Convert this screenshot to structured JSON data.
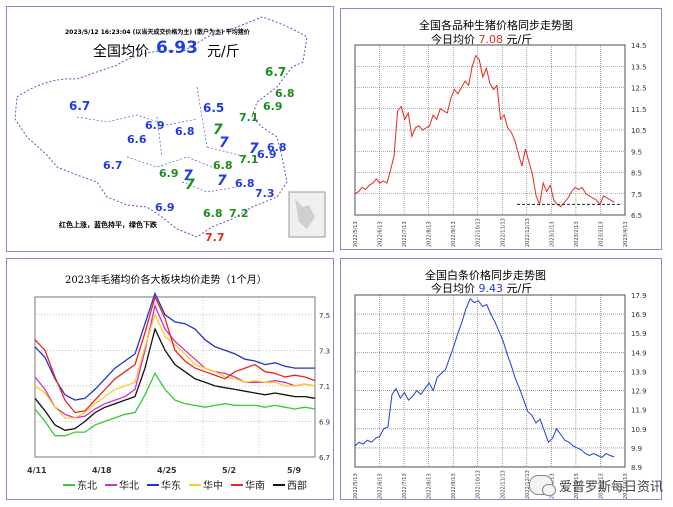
{
  "colors": {
    "border": "#8a8ad0",
    "grid": "#555555",
    "red": "#e8281e",
    "blue": "#1f3de0",
    "green": "#1e8c1e"
  },
  "map": {
    "date_line": "2023/5/12   16:23:04   (以当天成交价格为主)   (散户为主)   平均猪价",
    "avg_label": "全国均价",
    "avg_value": "6.93",
    "avg_unit": "元/斤",
    "legend": "红色上涨，蓝色持平，绿色下跌",
    "price_labels": [
      {
        "text": "6.7",
        "color": "green"
      },
      {
        "text": "6.8",
        "color": "green"
      },
      {
        "text": "6.9",
        "color": "green"
      },
      {
        "text": "6.5",
        "color": "blue"
      },
      {
        "text": "6.7",
        "color": "blue"
      },
      {
        "text": "6.9",
        "color": "blue"
      },
      {
        "text": "6.8",
        "color": "blue"
      },
      {
        "text": "6.6",
        "color": "blue"
      },
      {
        "text": "7.1",
        "color": "green"
      },
      {
        "text": "7",
        "color": "green"
      },
      {
        "text": "7",
        "color": "blue"
      },
      {
        "text": "7",
        "color": "blue"
      },
      {
        "text": "6.7",
        "color": "blue"
      },
      {
        "text": "6.8",
        "color": "green"
      },
      {
        "text": "6.9",
        "color": "blue"
      },
      {
        "text": "7.1",
        "color": "green"
      },
      {
        "text": "6.9",
        "color": "green"
      },
      {
        "text": "7",
        "color": "blue"
      },
      {
        "text": "7",
        "color": "blue"
      },
      {
        "text": "6.8",
        "color": "blue"
      },
      {
        "text": "6.8",
        "color": "blue"
      },
      {
        "text": "7",
        "color": "green"
      },
      {
        "text": "7.3",
        "color": "blue"
      },
      {
        "text": "6.9",
        "color": "blue"
      },
      {
        "text": "6.8",
        "color": "green"
      },
      {
        "text": "7.2",
        "color": "green"
      },
      {
        "text": "7.7",
        "color": "red"
      }
    ]
  },
  "chart_data": [
    {
      "type": "line",
      "title": "全国各品种生猪价格同步走势图",
      "subtitle_prefix": "今日均价",
      "subtitle_value": "7.08",
      "subtitle_unit": "元/斤",
      "yticks": [
        "14.5",
        "13.5",
        "12.5",
        "11.5",
        "10.5",
        "9.5",
        "8.5",
        "7.5",
        "6.5"
      ],
      "ylim": [
        6.5,
        14.5
      ],
      "xticks": [
        "2022/5/13",
        "2022/6/13",
        "2022/7/13",
        "2022/8/13",
        "2022/9/13",
        "2022/10/13",
        "2022/11/13",
        "2022/12/13",
        "2023/1/13",
        "2023/2/13",
        "2023/3/13",
        "2023/4/13"
      ],
      "series": [
        {
          "color": "red",
          "dashed_level": 7.0,
          "values": [
            7.5,
            7.6,
            7.8,
            7.7,
            7.9,
            8.0,
            8.2,
            8.0,
            8.1,
            8.0,
            8.6,
            9.3,
            11.4,
            11.6,
            11.0,
            11.3,
            10.2,
            10.6,
            10.7,
            10.5,
            10.6,
            10.7,
            11.2,
            11.0,
            11.5,
            11.4,
            11.3,
            12.0,
            12.4,
            12.2,
            12.5,
            12.8,
            12.6,
            13.5,
            14.0,
            13.8,
            13.0,
            13.4,
            12.7,
            12.4,
            12.6,
            11.0,
            11.2,
            10.6,
            10.4,
            10.0,
            9.4,
            8.8,
            9.6,
            9.0,
            8.4,
            7.4,
            7.0,
            8.0,
            7.6,
            7.9,
            7.2,
            7.0,
            6.9,
            7.1,
            7.3,
            7.6,
            7.8,
            7.7,
            7.8,
            7.5,
            7.4,
            7.3,
            7.2,
            7.0,
            7.4,
            7.3,
            7.2,
            7.1
          ]
        }
      ]
    },
    {
      "type": "line",
      "title": "2023年毛猪均价各大板块均价走势（1个月）",
      "yticks": [
        "7.5",
        "7.3",
        "7.1",
        "6.9",
        "6.7"
      ],
      "ylim": [
        6.7,
        7.6
      ],
      "xticks": [
        "4/11",
        "4/18",
        "4/25",
        "5/2",
        "5/9"
      ],
      "series": [
        {
          "name": "东北",
          "color": "#33cc33",
          "values": [
            6.97,
            6.9,
            6.82,
            6.82,
            6.84,
            6.84,
            6.88,
            6.9,
            6.92,
            6.94,
            6.95,
            7.05,
            7.17,
            7.08,
            7.02,
            7.0,
            6.99,
            6.98,
            6.99,
            7.0,
            6.99,
            6.99,
            6.99,
            6.98,
            6.99,
            6.98,
            6.97,
            6.98,
            6.97
          ]
        },
        {
          "name": "华北",
          "color": "#cc33cc",
          "values": [
            7.15,
            7.08,
            6.98,
            6.94,
            6.92,
            6.93,
            6.97,
            7.0,
            7.02,
            7.04,
            7.08,
            7.3,
            7.55,
            7.42,
            7.35,
            7.3,
            7.25,
            7.2,
            7.18,
            7.17,
            7.15,
            7.12,
            7.12,
            7.12,
            7.13,
            7.12,
            7.1,
            7.11,
            7.1
          ]
        },
        {
          "name": "华东",
          "color": "#2233cc",
          "values": [
            7.32,
            7.26,
            7.14,
            7.05,
            7.02,
            7.03,
            7.08,
            7.14,
            7.2,
            7.24,
            7.28,
            7.45,
            7.62,
            7.5,
            7.46,
            7.45,
            7.42,
            7.36,
            7.32,
            7.3,
            7.28,
            7.25,
            7.24,
            7.22,
            7.23,
            7.21,
            7.2,
            7.2,
            7.2
          ]
        },
        {
          "name": "华中",
          "color": "#ffcc22",
          "values": [
            7.1,
            7.06,
            6.98,
            6.92,
            6.92,
            6.95,
            7.0,
            7.04,
            7.08,
            7.1,
            7.12,
            7.32,
            7.5,
            7.38,
            7.33,
            7.28,
            7.22,
            7.2,
            7.18,
            7.15,
            7.14,
            7.12,
            7.13,
            7.12,
            7.12,
            7.1,
            7.1,
            7.11,
            7.1
          ]
        },
        {
          "name": "华南",
          "color": "#ee2222",
          "values": [
            7.36,
            7.3,
            7.15,
            7.02,
            6.95,
            6.96,
            7.02,
            7.08,
            7.14,
            7.18,
            7.22,
            7.4,
            7.6,
            7.48,
            7.3,
            7.24,
            7.2,
            7.18,
            7.16,
            7.14,
            7.18,
            7.2,
            7.22,
            7.18,
            7.17,
            7.15,
            7.16,
            7.15,
            7.13
          ]
        },
        {
          "name": "西部",
          "color": "#111111",
          "values": [
            7.03,
            6.96,
            6.88,
            6.85,
            6.86,
            6.9,
            6.95,
            6.98,
            7.0,
            7.02,
            7.04,
            7.2,
            7.42,
            7.3,
            7.22,
            7.18,
            7.14,
            7.12,
            7.1,
            7.09,
            7.08,
            7.07,
            7.06,
            7.05,
            7.06,
            7.05,
            7.04,
            7.04,
            7.03
          ]
        }
      ]
    },
    {
      "type": "line",
      "title": "全国白条价格同步走势图",
      "subtitle_prefix": "今日均价",
      "subtitle_value": "9.43",
      "subtitle_unit": "元/斤",
      "yticks": [
        "17.9",
        "16.9",
        "15.9",
        "14.9",
        "13.9",
        "12.9",
        "11.9",
        "10.9",
        "9.9",
        "8.9"
      ],
      "ylim": [
        8.9,
        17.9
      ],
      "xticks": [
        "2022/5/13",
        "2022/6/13",
        "2022/7/13",
        "2022/8/13",
        "2022/9/13",
        "2022/10/13",
        "2022/11/13",
        "2022/12/13",
        "2023/1/13",
        "2023/2/13",
        "2023/3/13",
        "2023/4/13"
      ],
      "series": [
        {
          "color": "blue",
          "values": [
            10.0,
            10.2,
            10.1,
            10.3,
            10.2,
            10.4,
            10.5,
            10.9,
            11.0,
            12.7,
            13.0,
            12.5,
            12.8,
            12.4,
            12.6,
            12.9,
            12.7,
            13.0,
            13.3,
            12.9,
            13.6,
            13.8,
            14.0,
            14.6,
            15.2,
            15.9,
            16.5,
            17.2,
            17.7,
            17.5,
            17.6,
            17.3,
            17.4,
            16.9,
            16.5,
            16.0,
            15.5,
            14.8,
            14.2,
            13.5,
            13.0,
            12.4,
            11.8,
            11.6,
            11.2,
            11.4,
            10.8,
            10.2,
            10.4,
            10.9,
            10.6,
            10.3,
            10.2,
            10.0,
            9.9,
            9.8,
            9.6,
            9.5,
            9.6,
            9.5,
            9.4,
            9.6,
            9.5,
            9.43
          ]
        }
      ]
    }
  ],
  "watermark": "爱普罗斯每日资讯"
}
